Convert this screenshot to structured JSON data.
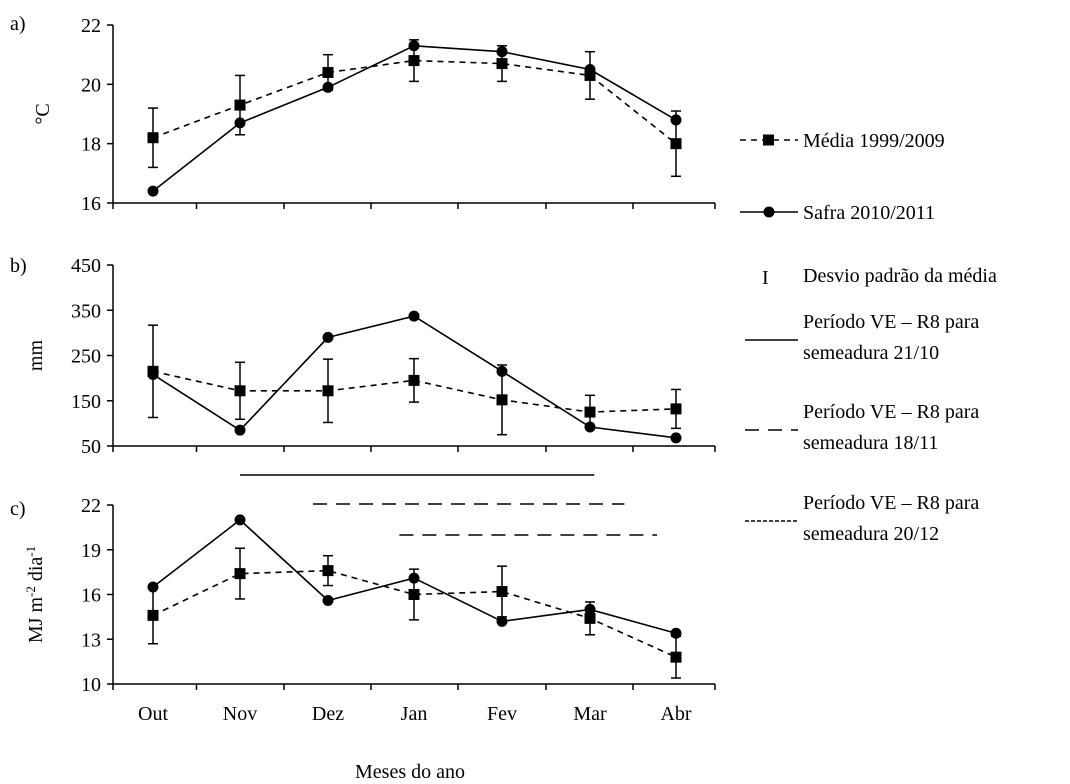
{
  "chart_data": [
    {
      "type": "line",
      "panel_label": "a)",
      "ylabel": "°C",
      "ylim": [
        16,
        22
      ],
      "yticks": [
        16,
        18,
        20,
        22
      ],
      "categories": [
        "Out",
        "Nov",
        "Dez",
        "Jan",
        "Fev",
        "Mar",
        "Abr"
      ],
      "series": [
        {
          "name": "Média 1999/2009",
          "values": [
            18.2,
            19.3,
            20.4,
            20.8,
            20.7,
            20.3,
            18.0
          ],
          "err": [
            1.0,
            1.0,
            0.6,
            0.7,
            0.6,
            0.8,
            1.1
          ]
        },
        {
          "name": "Safra 2010/2011",
          "values": [
            16.4,
            18.7,
            19.9,
            21.3,
            21.1,
            20.5,
            18.8
          ]
        }
      ]
    },
    {
      "type": "line",
      "panel_label": "b)",
      "ylabel": "mm",
      "ylim": [
        50,
        450
      ],
      "yticks": [
        50,
        150,
        250,
        350,
        450
      ],
      "categories": [
        "Out",
        "Nov",
        "Dez",
        "Jan",
        "Fev",
        "Mar",
        "Abr"
      ],
      "series": [
        {
          "name": "Média 1999/2009",
          "values": [
            215,
            172,
            172,
            195,
            152,
            125,
            132
          ],
          "err": [
            102,
            63,
            70,
            48,
            77,
            37,
            43
          ]
        },
        {
          "name": "Safra 2010/2011",
          "values": [
            208,
            85,
            290,
            337,
            215,
            92,
            68
          ]
        }
      ]
    },
    {
      "type": "line",
      "panel_label": "c)",
      "ylabel": "MJ m-2 dia-1",
      "ylabel_parts": [
        "MJ m",
        "-2",
        " dia",
        "-1"
      ],
      "ylim": [
        10,
        22
      ],
      "yticks": [
        10,
        13,
        16,
        19,
        22
      ],
      "categories": [
        "Out",
        "Nov",
        "Dez",
        "Jan",
        "Fev",
        "Mar",
        "Abr"
      ],
      "xlabel": "Meses do ano",
      "series": [
        {
          "name": "Média 1999/2009",
          "values": [
            14.6,
            17.4,
            17.6,
            16.0,
            16.2,
            14.4,
            11.8
          ],
          "err": [
            1.9,
            1.7,
            1.0,
            1.7,
            1.7,
            1.1,
            1.4
          ]
        },
        {
          "name": "Safra 2010/2011",
          "values": [
            16.5,
            21.0,
            15.6,
            17.1,
            14.2,
            15.0,
            13.4
          ]
        }
      ],
      "periods": [
        {
          "name": "Período VE – R8 para semeadura 21/10",
          "style": "solid",
          "start_month": 1.0,
          "end_month": 5.05
        },
        {
          "name": "Período VE – R8 para semeadura 18/11",
          "style": "long-dash",
          "start_month": 1.83,
          "end_month": 5.4
        },
        {
          "name": "Período VE – R8 para semeadura 20/12",
          "style": "short-dash",
          "start_month": 2.83,
          "end_month": 5.78
        }
      ]
    }
  ],
  "legend": [
    {
      "type": "dashed-square",
      "label": "Média 1999/2009"
    },
    {
      "type": "solid-circle",
      "label": "Safra 2010/2011"
    },
    {
      "type": "errorbar-symbol",
      "symbol": "I",
      "label": "Desvio padrão da média"
    },
    {
      "type": "solid-line",
      "lines": [
        "Período VE – R8 para",
        "semeadura 21/10"
      ]
    },
    {
      "type": "long-dash-line",
      "lines": [
        "Período VE – R8 para",
        "semeadura 18/11"
      ]
    },
    {
      "type": "short-dash-line",
      "lines": [
        "Período VE – R8 para",
        "semeadura 20/12"
      ]
    }
  ]
}
